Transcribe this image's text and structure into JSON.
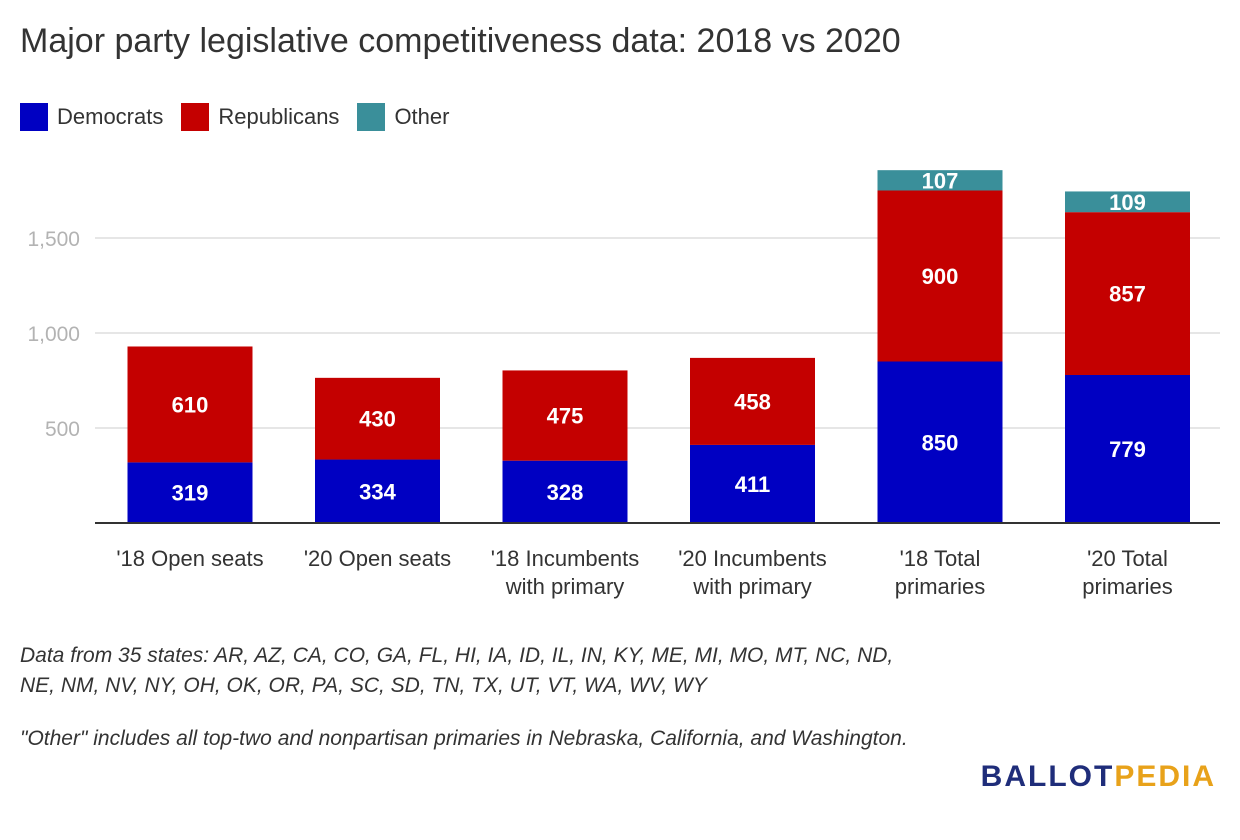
{
  "chart_data": {
    "type": "bar",
    "stacked": true,
    "title": "Major party legislative competitiveness data: 2018 vs 2020",
    "categories": [
      [
        "'18 Open seats"
      ],
      [
        "'20 Open seats"
      ],
      [
        "'18 Incumbents",
        "with primary"
      ],
      [
        "'20 Incumbents",
        "with primary"
      ],
      [
        "'18 Total",
        "primaries"
      ],
      [
        "'20 Total",
        "primaries"
      ]
    ],
    "series": [
      {
        "name": "Democrats",
        "color": "#0000c2",
        "values": [
          319,
          334,
          328,
          411,
          850,
          779
        ]
      },
      {
        "name": "Republicans",
        "color": "#c40000",
        "values": [
          610,
          430,
          475,
          458,
          900,
          857
        ]
      },
      {
        "name": "Other",
        "color": "#3a8f9a",
        "values": [
          0,
          0,
          0,
          0,
          107,
          109
        ]
      }
    ],
    "yticks": [
      500,
      1000,
      1500
    ],
    "ytick_labels": [
      "500",
      "1,000",
      "1,500"
    ],
    "ylim": [
      0,
      1850
    ],
    "grid": true,
    "legend_position": "top-left",
    "xlabel": "",
    "ylabel": ""
  },
  "notes": {
    "states": "Data from 35 states: AR, AZ, CA, CO, GA, FL, HI, IA, ID, IL, IN, KY, ME, MI, MO, MT, NC, ND, NE, NM, NV, NY, OH, OK, OR, PA, SC, SD, TN, TX, UT, VT, WA, WV, WY",
    "other": "\"Other\" includes all top-two and nonpartisan primaries in Nebraska, California, and Washington."
  },
  "logo": {
    "part1": "BALLOT",
    "part2": "PEDIA"
  }
}
